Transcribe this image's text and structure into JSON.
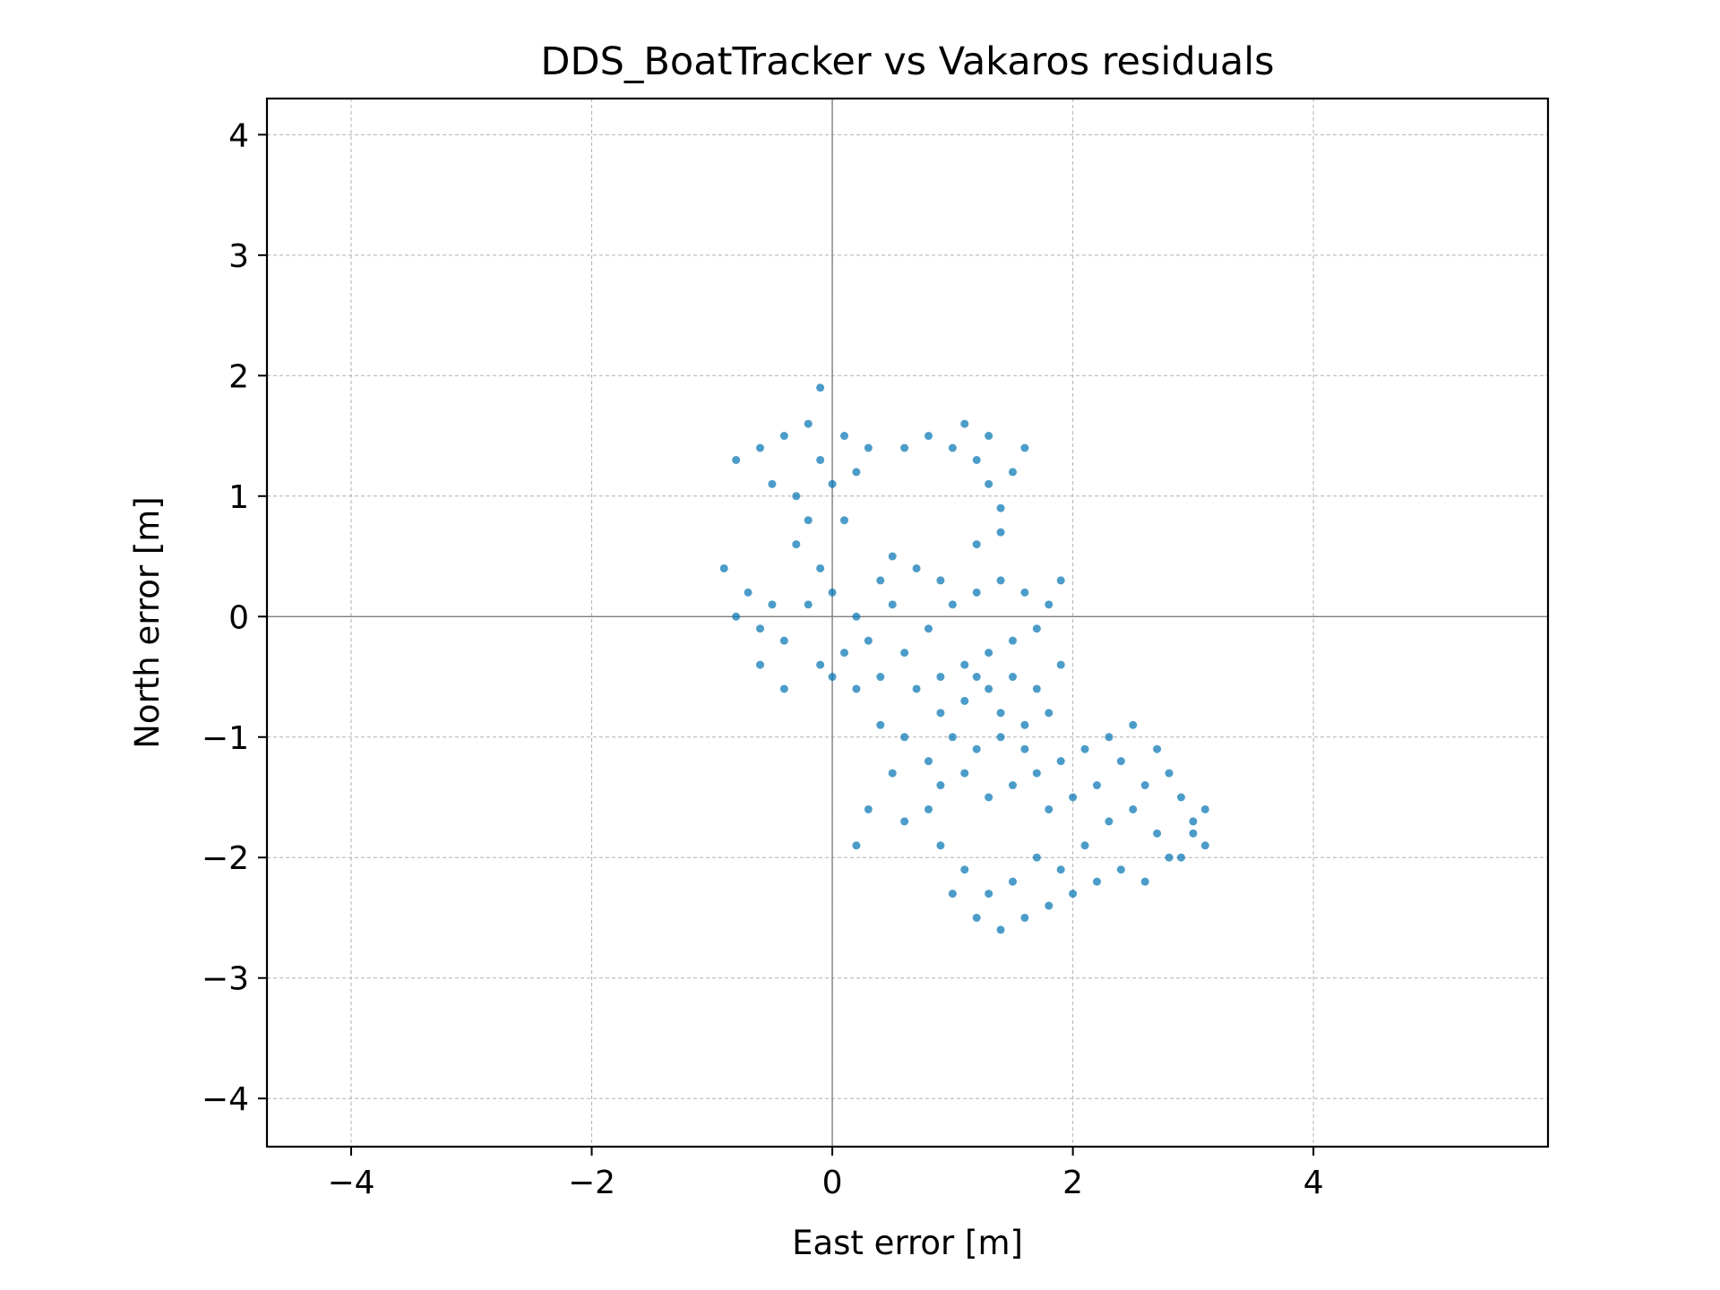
{
  "chart_data": {
    "type": "scatter",
    "title": "DDS_BoatTracker vs Vakaros residuals",
    "xlabel": "East error [m]",
    "ylabel": "North error [m]",
    "xlim": [
      -4.7,
      5.95
    ],
    "ylim": [
      -4.4,
      4.3
    ],
    "xticks": [
      -4,
      -2,
      0,
      2,
      4
    ],
    "yticks": [
      -4,
      -3,
      -2,
      -1,
      0,
      1,
      2,
      3,
      4
    ],
    "grid": true,
    "reference_lines": {
      "x": 0,
      "y": 0
    },
    "color": "#0072b2",
    "series": [
      {
        "points": [
          [
            -0.1,
            1.9
          ],
          [
            -0.4,
            1.5
          ],
          [
            -0.2,
            1.6
          ],
          [
            -0.6,
            1.4
          ],
          [
            -0.8,
            1.3
          ],
          [
            -0.5,
            1.1
          ],
          [
            -0.3,
            1.0
          ],
          [
            -0.1,
            1.3
          ],
          [
            0.1,
            1.5
          ],
          [
            0.2,
            1.2
          ],
          [
            0.3,
            1.4
          ],
          [
            0.0,
            1.1
          ],
          [
            -0.2,
            0.8
          ],
          [
            0.1,
            0.8
          ],
          [
            -0.9,
            0.4
          ],
          [
            -0.7,
            0.2
          ],
          [
            -0.5,
            0.1
          ],
          [
            -0.8,
            0.0
          ],
          [
            -0.6,
            -0.1
          ],
          [
            -0.4,
            -0.2
          ],
          [
            -0.2,
            0.1
          ],
          [
            0.0,
            0.2
          ],
          [
            0.2,
            0.0
          ],
          [
            0.4,
            0.3
          ],
          [
            0.5,
            0.1
          ],
          [
            0.3,
            -0.2
          ],
          [
            0.1,
            -0.3
          ],
          [
            -0.1,
            -0.4
          ],
          [
            0.0,
            -0.5
          ],
          [
            0.2,
            -0.6
          ],
          [
            0.4,
            -0.5
          ],
          [
            0.6,
            -0.3
          ],
          [
            0.8,
            -0.1
          ],
          [
            1.0,
            0.1
          ],
          [
            1.2,
            0.2
          ],
          [
            1.4,
            0.3
          ],
          [
            1.6,
            0.2
          ],
          [
            1.8,
            0.1
          ],
          [
            1.9,
            0.3
          ],
          [
            1.7,
            -0.1
          ],
          [
            1.5,
            -0.2
          ],
          [
            1.3,
            -0.3
          ],
          [
            1.1,
            -0.4
          ],
          [
            0.9,
            -0.5
          ],
          [
            0.7,
            -0.6
          ],
          [
            0.9,
            -0.8
          ],
          [
            1.1,
            -0.7
          ],
          [
            1.3,
            -0.6
          ],
          [
            1.5,
            -0.5
          ],
          [
            1.7,
            -0.6
          ],
          [
            1.9,
            -0.4
          ],
          [
            1.8,
            -0.8
          ],
          [
            1.6,
            -0.9
          ],
          [
            1.4,
            -1.0
          ],
          [
            1.2,
            -1.1
          ],
          [
            1.0,
            -1.0
          ],
          [
            0.8,
            -1.2
          ],
          [
            0.9,
            -1.4
          ],
          [
            1.1,
            -1.3
          ],
          [
            1.3,
            -1.5
          ],
          [
            1.5,
            -1.4
          ],
          [
            1.7,
            -1.3
          ],
          [
            1.9,
            -1.2
          ],
          [
            2.1,
            -1.1
          ],
          [
            2.3,
            -1.0
          ],
          [
            2.5,
            -0.9
          ],
          [
            2.7,
            -1.1
          ],
          [
            2.8,
            -1.3
          ],
          [
            2.9,
            -1.5
          ],
          [
            3.0,
            -1.7
          ],
          [
            3.1,
            -1.9
          ],
          [
            2.9,
            -2.0
          ],
          [
            2.7,
            -1.8
          ],
          [
            2.5,
            -1.6
          ],
          [
            2.3,
            -1.7
          ],
          [
            2.1,
            -1.9
          ],
          [
            1.9,
            -2.1
          ],
          [
            1.7,
            -2.0
          ],
          [
            1.5,
            -2.2
          ],
          [
            1.3,
            -2.3
          ],
          [
            1.1,
            -2.1
          ],
          [
            0.9,
            -1.9
          ],
          [
            1.0,
            -2.3
          ],
          [
            1.2,
            -2.5
          ],
          [
            1.4,
            -2.6
          ],
          [
            1.6,
            -2.5
          ],
          [
            1.8,
            -2.4
          ],
          [
            2.0,
            -2.3
          ],
          [
            2.2,
            -2.2
          ],
          [
            2.4,
            -2.1
          ],
          [
            2.6,
            -2.2
          ],
          [
            2.8,
            -2.0
          ],
          [
            3.0,
            -1.8
          ],
          [
            3.1,
            -1.6
          ],
          [
            0.4,
            -0.9
          ],
          [
            0.6,
            -1.0
          ],
          [
            0.5,
            -1.3
          ],
          [
            0.3,
            -1.6
          ],
          [
            0.2,
            -1.9
          ],
          [
            0.6,
            -1.7
          ],
          [
            0.8,
            -1.6
          ],
          [
            1.2,
            -0.5
          ],
          [
            1.4,
            -0.8
          ],
          [
            1.6,
            -1.1
          ],
          [
            1.8,
            -1.6
          ],
          [
            2.0,
            -1.5
          ],
          [
            2.2,
            -1.4
          ],
          [
            2.4,
            -1.2
          ],
          [
            2.6,
            -1.4
          ],
          [
            0.5,
            0.5
          ],
          [
            0.7,
            0.4
          ],
          [
            0.9,
            0.3
          ],
          [
            0.6,
            1.4
          ],
          [
            0.8,
            1.5
          ],
          [
            1.0,
            1.4
          ],
          [
            1.2,
            1.3
          ],
          [
            1.3,
            1.1
          ],
          [
            1.4,
            0.9
          ],
          [
            1.5,
            1.2
          ],
          [
            1.6,
            1.4
          ],
          [
            1.3,
            1.5
          ],
          [
            1.1,
            1.6
          ],
          [
            1.4,
            0.7
          ],
          [
            1.2,
            0.6
          ],
          [
            -0.3,
            0.6
          ],
          [
            -0.1,
            0.4
          ],
          [
            -0.4,
            -0.6
          ],
          [
            -0.6,
            -0.4
          ]
        ]
      }
    ]
  }
}
